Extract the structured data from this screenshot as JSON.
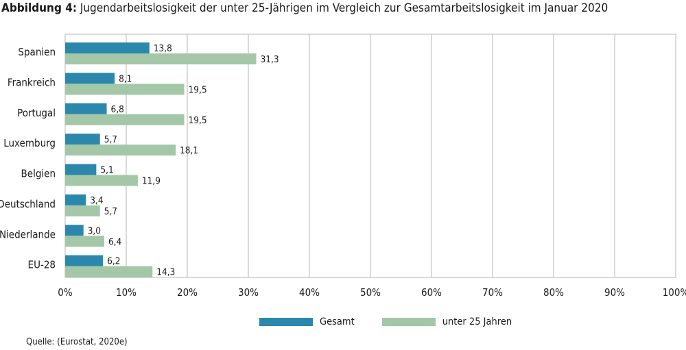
{
  "title_lead": "Abbildung 4:",
  "title_text": " Jugendarbeitslosigkeit der unter 25-Jährigen im Vergleich zur Gesamtarbeitslosigkeit im Januar 2020",
  "source": "Quelle: (Eurostat, 2020e)",
  "colors": {
    "gesamt": "#2b88ac",
    "unter25": "#a3c7a7",
    "grid": "#b5b5b5"
  },
  "chart_data": {
    "type": "bar",
    "orientation": "horizontal",
    "categories": [
      "Spanien",
      "Frankreich",
      "Portugal",
      "Luxemburg",
      "Belgien",
      "Deutschland",
      "Niederlande",
      "EU-28"
    ],
    "series": [
      {
        "name": "Gesamt",
        "values": [
          13.8,
          8.1,
          6.8,
          5.7,
          5.1,
          3.4,
          3.0,
          6.2
        ],
        "labels": [
          "13,8",
          "8,1",
          "6,8",
          "5,7",
          "5,1",
          "3,4",
          "3,0",
          "6,2"
        ]
      },
      {
        "name": "unter 25 Jahren",
        "values": [
          31.3,
          19.5,
          19.5,
          18.1,
          11.9,
          5.7,
          6.4,
          14.3
        ],
        "labels": [
          "31,3",
          "19,5",
          "19,5",
          "18,1",
          "11,9",
          "5,7",
          "6,4",
          "14,3"
        ]
      }
    ],
    "xlim": [
      0,
      100
    ],
    "xticks": [
      "0%",
      "10%",
      "20%",
      "30%",
      "40%",
      "50%",
      "60%",
      "70%",
      "80%",
      "90%",
      "100%"
    ],
    "grid": true,
    "legend_position": "bottom"
  }
}
